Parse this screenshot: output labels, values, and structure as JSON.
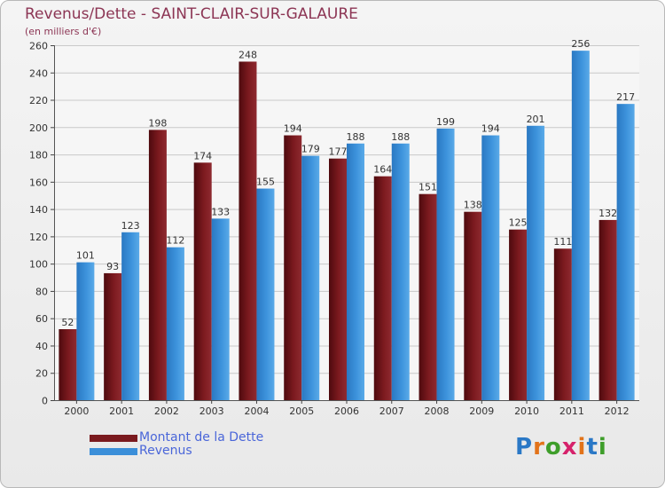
{
  "chart_data": {
    "type": "bar",
    "title": "Revenus/Dette - SAINT-CLAIR-SUR-GALAURE",
    "subtitle": "(en milliers d'€)",
    "categories": [
      "2000",
      "2001",
      "2002",
      "2003",
      "2004",
      "2005",
      "2006",
      "2007",
      "2008",
      "2009",
      "2010",
      "2011",
      "2012"
    ],
    "series": [
      {
        "name": "Montant de la Dette",
        "color": "#7a1a1e",
        "values": [
          52,
          93,
          198,
          174,
          248,
          194,
          177,
          164,
          151,
          138,
          125,
          111,
          132
        ]
      },
      {
        "name": "Revenus",
        "color": "#3b8fd9",
        "values": [
          101,
          123,
          112,
          133,
          155,
          179,
          188,
          188,
          199,
          194,
          201,
          256,
          217
        ]
      }
    ],
    "ylim": [
      0,
      260
    ],
    "yticks": [
      0,
      20,
      40,
      60,
      80,
      100,
      120,
      140,
      160,
      180,
      200,
      220,
      240,
      260
    ],
    "grid": true,
    "legend_position": "bottom-left"
  },
  "logo": {
    "letters": [
      "P",
      "r",
      "o",
      "x",
      "i",
      "t",
      "i"
    ],
    "colors": [
      "#2a78c6",
      "#e2731a",
      "#3e9e2a",
      "#d6226b",
      "#e2731a",
      "#2a78c6",
      "#3e9e2a"
    ]
  }
}
